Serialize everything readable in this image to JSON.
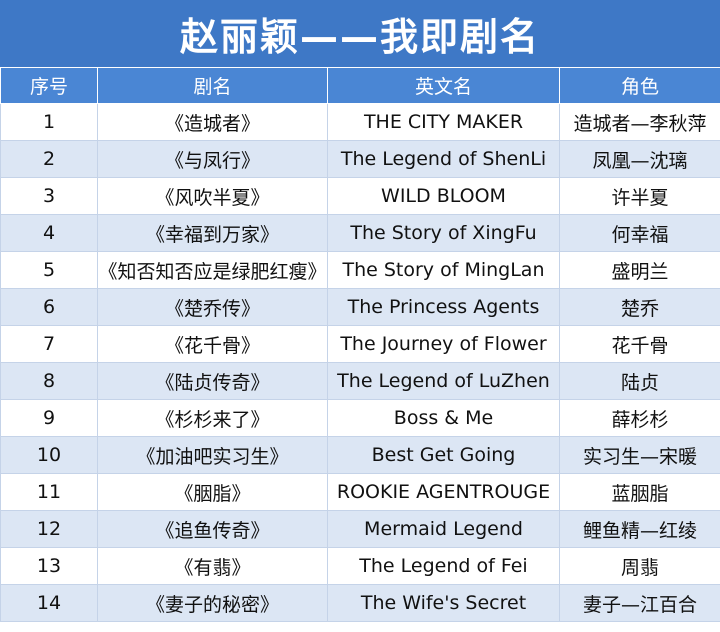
{
  "title": "赵丽颖——我即剧名",
  "headers": [
    "序号",
    "剧名",
    "英文名",
    "角色"
  ],
  "rows": [
    {
      "no": "1",
      "cn": "《造城者》",
      "en": "THE CITY MAKER",
      "role": "造城者—李秋萍"
    },
    {
      "no": "2",
      "cn": "《与凤行》",
      "en": "The Legend of ShenLi",
      "role": "凤凰—沈璃"
    },
    {
      "no": "3",
      "cn": "《风吹半夏》",
      "en": "WILD BLOOM",
      "role": "许半夏"
    },
    {
      "no": "4",
      "cn": "《幸福到万家》",
      "en": "The Story of XingFu",
      "role": "何幸福"
    },
    {
      "no": "5",
      "cn": "《知否知否应是绿肥红瘦》",
      "en": "The Story of MingLan",
      "role": "盛明兰"
    },
    {
      "no": "6",
      "cn": "《楚乔传》",
      "en": "The Princess Agents",
      "role": "楚乔"
    },
    {
      "no": "7",
      "cn": "《花千骨》",
      "en": "The Journey of Flower",
      "role": "花千骨"
    },
    {
      "no": "8",
      "cn": "《陆贞传奇》",
      "en": "The Legend of LuZhen",
      "role": "陆贞"
    },
    {
      "no": "9",
      "cn": "《杉杉来了》",
      "en": "Boss & Me",
      "role": "薛杉杉"
    },
    {
      "no": "10",
      "cn": "《加油吧实习生》",
      "en": "Best Get Going",
      "role": "实习生—宋暖"
    },
    {
      "no": "11",
      "cn": "《胭脂》",
      "en": "ROOKIE AGENTROUGE",
      "role": "蓝胭脂"
    },
    {
      "no": "12",
      "cn": "《追鱼传奇》",
      "en": "Mermaid Legend",
      "role": "鲤鱼精—红绫"
    },
    {
      "no": "13",
      "cn": "《有翡》",
      "en": "The Legend of Fei",
      "role": "周翡"
    },
    {
      "no": "14",
      "cn": "《妻子的秘密》",
      "en": "The  Wife's Secret",
      "role": "妻子—江百合"
    }
  ]
}
